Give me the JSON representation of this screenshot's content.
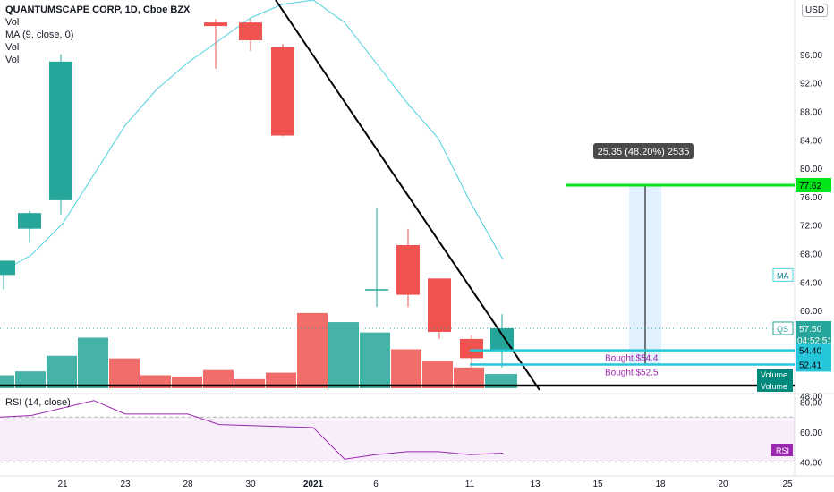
{
  "legend": {
    "title": "QUANTUMSCAPE CORP, 1D, Cboe BZX",
    "lines": [
      "Vol",
      "MA (9, close, 0)",
      "Vol",
      "Vol"
    ],
    "rsi": "RSI (14, close)"
  },
  "currency": "USD",
  "chart_data": {
    "type": "candlestick",
    "price_axis": {
      "ticks": [
        48,
        52,
        56,
        60,
        64,
        68,
        72,
        76,
        80,
        84,
        88,
        92,
        96
      ],
      "range": [
        46,
        101
      ]
    },
    "x_axis": {
      "ticks": [
        "21",
        "23",
        "28",
        "30",
        "2021",
        "6",
        "11",
        "13",
        "15",
        "18",
        "20",
        "25"
      ]
    },
    "candles": [
      {
        "open": 65.0,
        "high": 67.0,
        "low": 63.0,
        "close": 67.0,
        "color": "green"
      },
      {
        "open": 71.5,
        "high": 74.0,
        "low": 69.5,
        "close": 73.7,
        "color": "green"
      },
      {
        "open": 75.5,
        "high": 96.0,
        "low": 73.5,
        "close": 95.0,
        "color": "green"
      },
      {
        "open": 100.5,
        "high": 101.0,
        "low": 94.0,
        "close": 100.0,
        "color": "red"
      },
      {
        "open": 100.5,
        "high": 101.0,
        "low": 96.5,
        "close": 98.0,
        "color": "red"
      },
      {
        "open": 97.0,
        "high": 97.5,
        "low": 84.5,
        "close": 84.6,
        "color": "red"
      },
      {
        "open": 63.0,
        "high": 74.5,
        "low": 60.5,
        "close": 63.0,
        "color": "green"
      },
      {
        "open": 69.2,
        "high": 71.5,
        "low": 60.5,
        "close": 62.2,
        "color": "red"
      },
      {
        "open": 64.5,
        "high": 64.5,
        "low": 56.0,
        "close": 57.0,
        "color": "red"
      },
      {
        "open": 56.0,
        "high": 56.5,
        "low": 52.0,
        "close": 53.3,
        "color": "red"
      },
      {
        "open": 54.4,
        "high": 59.5,
        "low": 52.0,
        "close": 57.5,
        "color": "green"
      }
    ],
    "moving_average": {
      "name": "MA (9, close, 0)",
      "values": [
        62.5,
        69.0,
        80.0,
        90.5,
        99.5,
        100.5,
        97.0,
        86.0,
        76.0,
        69.0,
        64.5
      ]
    },
    "volume": {
      "labels": [
        "Volume",
        "Volume"
      ],
      "values": [
        1.0,
        1.3,
        2.5,
        3.9,
        2.3,
        1.0,
        0.9,
        1.4,
        0.7,
        1.2,
        5.8,
        5.1,
        4.3,
        3.0,
        2.1,
        1.6,
        1.1
      ]
    },
    "rsi": {
      "name": "RSI",
      "range": [
        35,
        85
      ],
      "ticks": [
        40,
        60,
        80
      ],
      "overbought": 70,
      "oversold": 30,
      "values": [
        70,
        76,
        81,
        72,
        72,
        72,
        65,
        63,
        42,
        47,
        47,
        45,
        46
      ]
    },
    "annotations": {
      "measure_label": "25.35 (48.20%) 2535",
      "target_price": "77.62",
      "bought_1": "Bought $54.4",
      "bought_2": "Bought $52.5",
      "price_labels": {
        "qs": "QS",
        "last": "57.50",
        "countdown": "04:52:51",
        "level_1": "54.40",
        "level_2": "52.41",
        "ma": "MA",
        "rsi": "RSI"
      }
    }
  }
}
